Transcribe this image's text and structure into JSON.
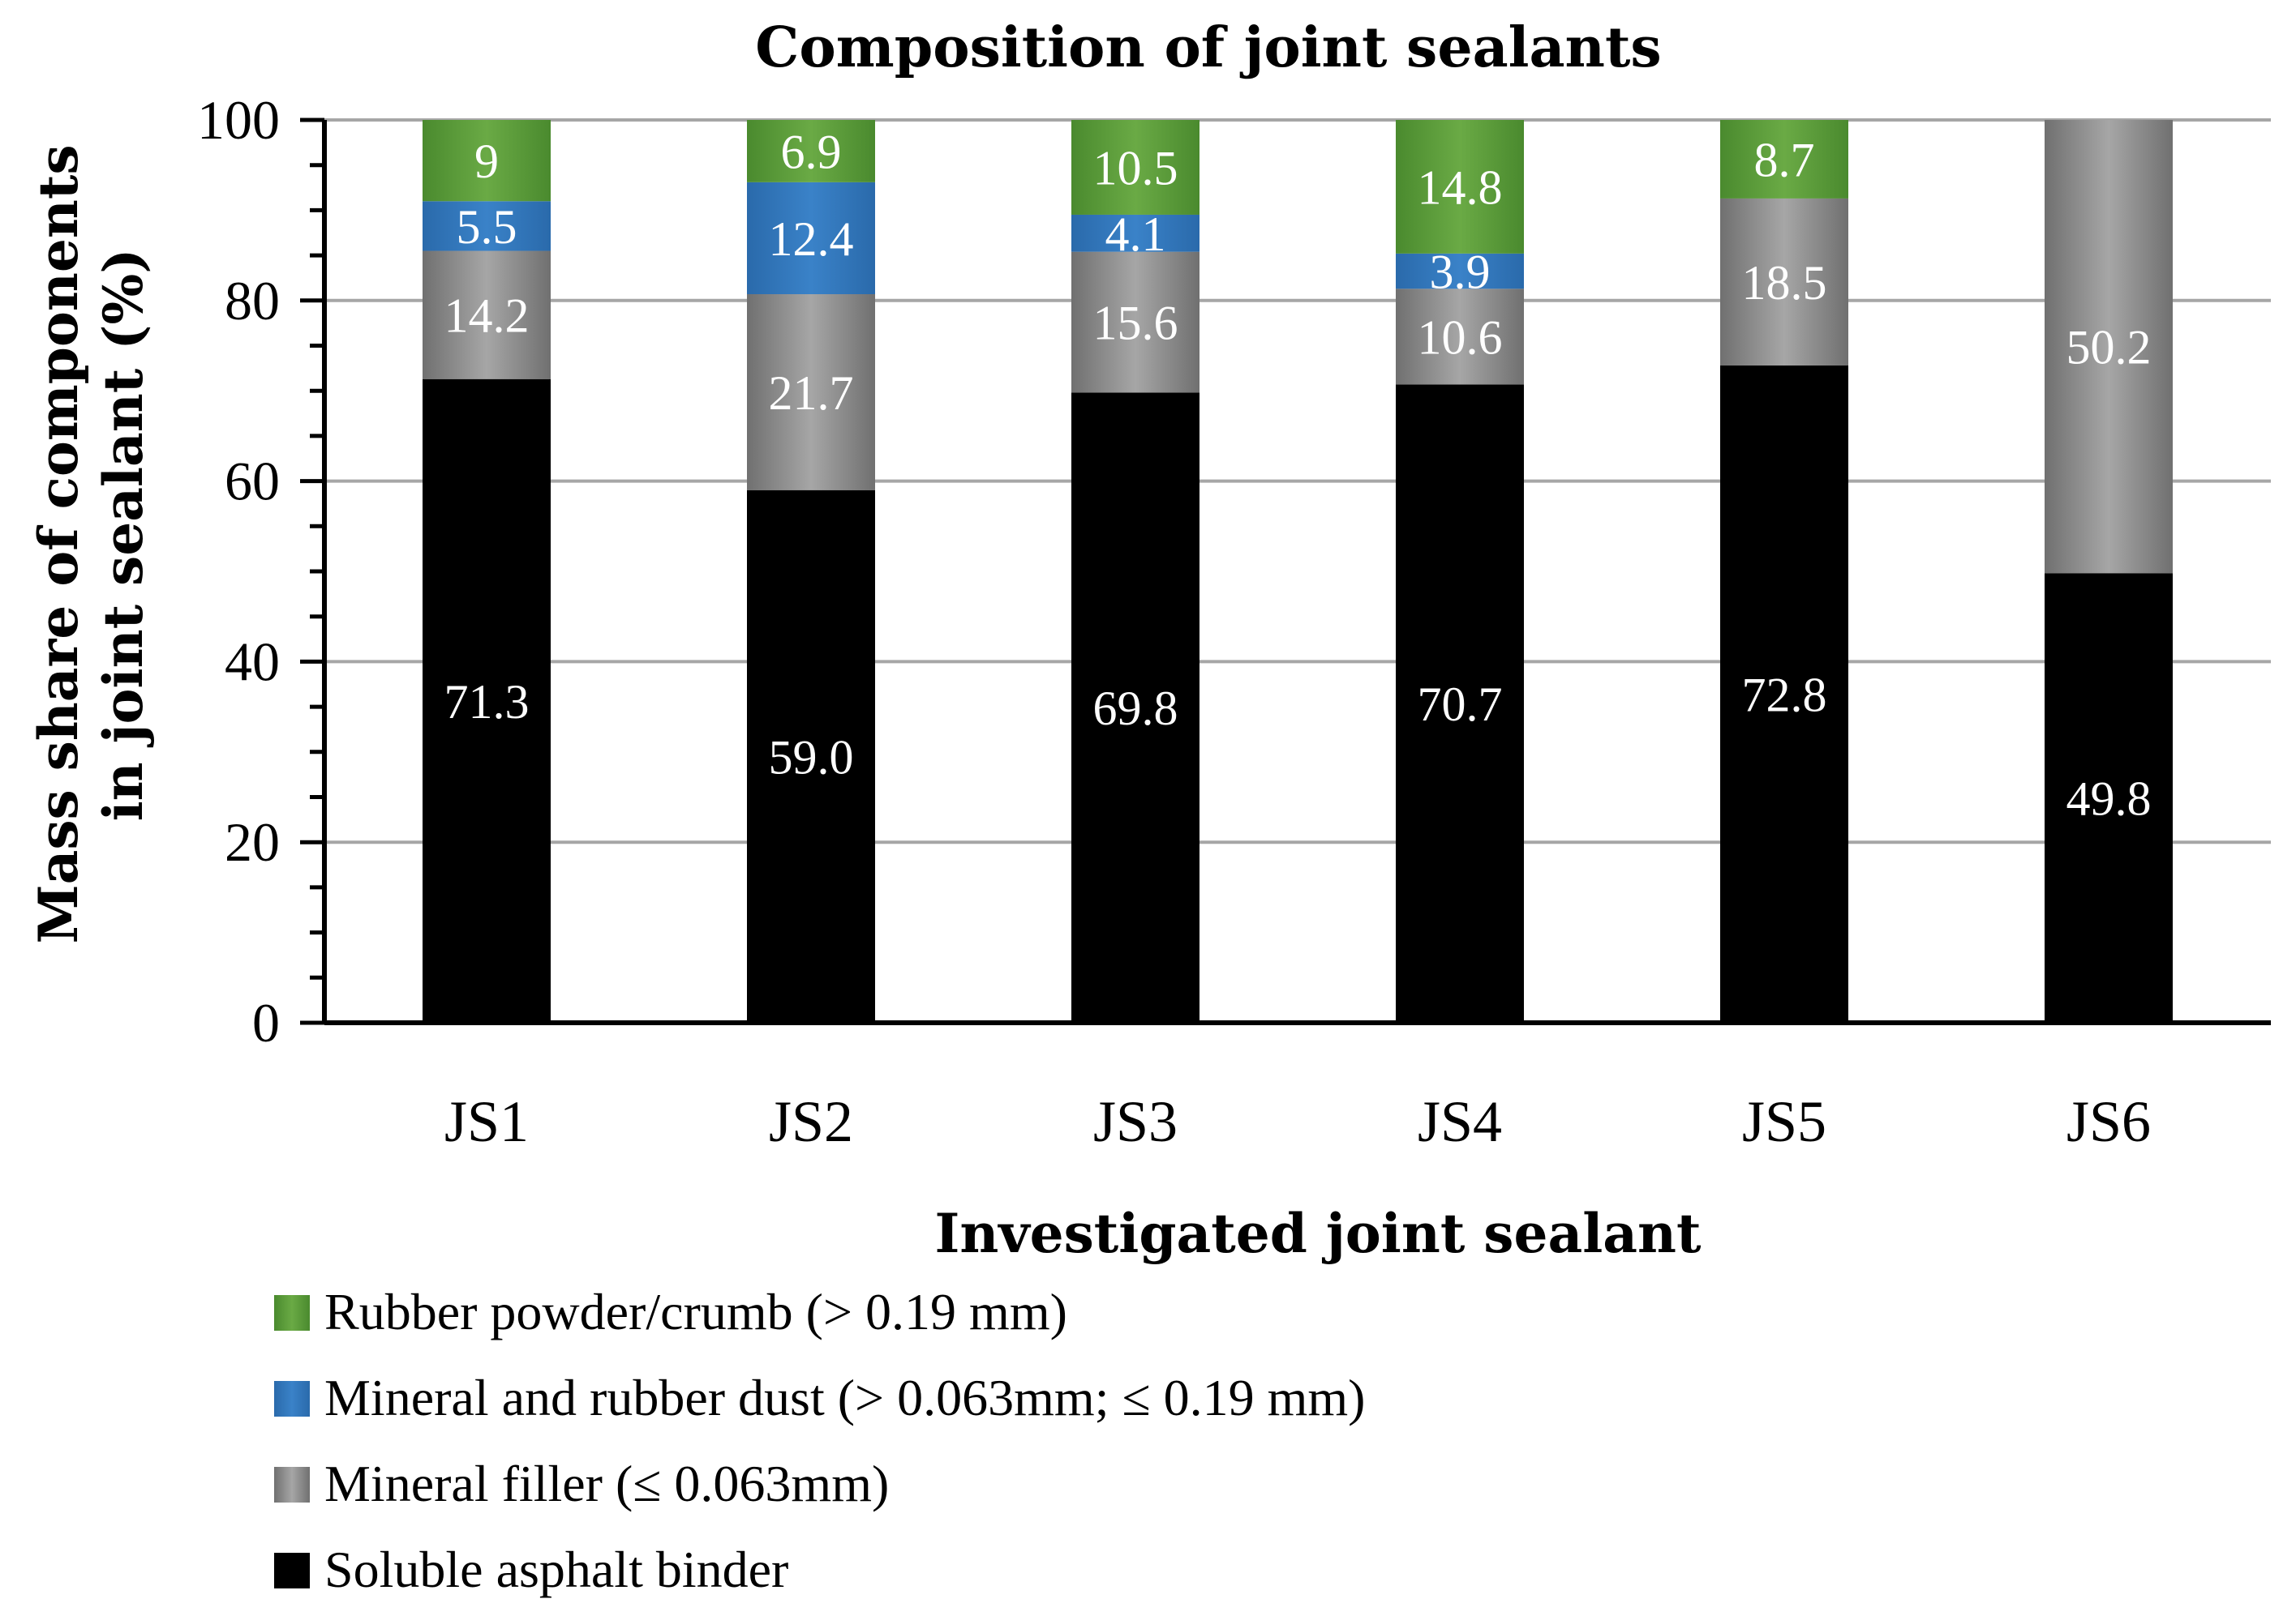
{
  "chart_data": {
    "type": "bar",
    "stacked": true,
    "title": "Composition of joint sealants",
    "xlabel": "Investigated joint sealant",
    "ylabel_lines": [
      "Mass share of components",
      "in joint sealant (%)"
    ],
    "ylim": [
      0,
      100
    ],
    "yticks": [
      "0",
      "20",
      "40",
      "60",
      "80",
      "100"
    ],
    "grid": true,
    "legend_position": "bottom",
    "categories": [
      "JS1",
      "JS2",
      "JS3",
      "JS4",
      "JS5",
      "JS6"
    ],
    "series": [
      {
        "name": "Soluble asphalt binder",
        "color": "#000000",
        "values": [
          71.3,
          59.0,
          69.8,
          70.7,
          72.8,
          49.8
        ],
        "labels": [
          "71.3",
          "59.0",
          "69.8",
          "70.7",
          "72.8",
          "49.8"
        ]
      },
      {
        "name": "Mineral filler (≤ 0.063mm)",
        "color": "#8c8c8c",
        "values": [
          14.2,
          21.7,
          15.6,
          10.6,
          18.5,
          50.2
        ],
        "labels": [
          "14.2",
          "21.7",
          "15.6",
          "10.6",
          "18.5",
          "50.2"
        ]
      },
      {
        "name": "Mineral and rubber dust (> 0.063mm; ≤ 0.19 mm)",
        "color": "#2e75b6",
        "values": [
          5.5,
          12.4,
          4.1,
          3.9,
          0,
          0
        ],
        "labels": [
          "5.5",
          "12.4",
          "4.1",
          "3.9",
          "",
          ""
        ]
      },
      {
        "name": "Rubber powder/crumb (> 0.19 mm)",
        "color": "#5b9a3a",
        "values": [
          9,
          6.9,
          10.5,
          14.8,
          8.7,
          0
        ],
        "labels": [
          "9",
          "6.9",
          "10.5",
          "14.8",
          "8.7",
          ""
        ]
      }
    ],
    "legend_order": [
      3,
      2,
      1,
      0
    ]
  }
}
